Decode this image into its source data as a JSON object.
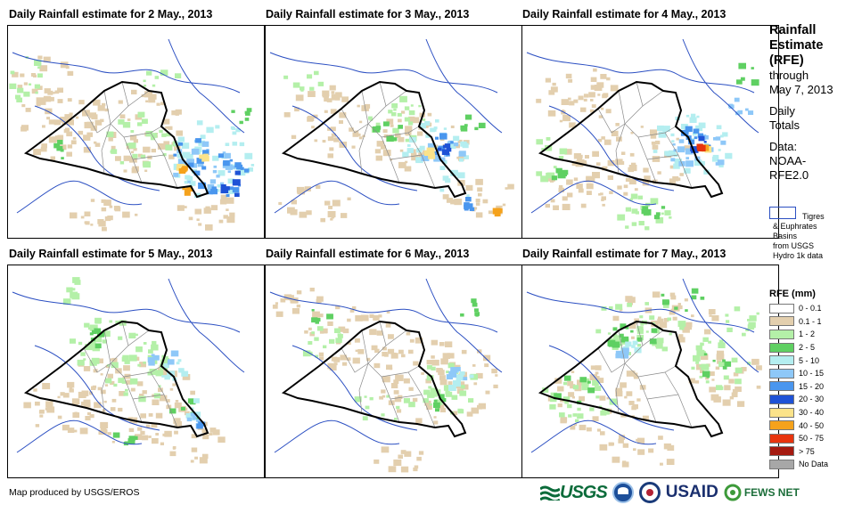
{
  "panels": [
    {
      "title": "Daily Rainfall estimate for 2 May., 2013"
    },
    {
      "title": "Daily Rainfall estimate for 3 May., 2013"
    },
    {
      "title": "Daily Rainfall estimate for 4 May., 2013"
    },
    {
      "title": "Daily Rainfall estimate for 5 May., 2013"
    },
    {
      "title": "Daily Rainfall estimate for 6 May., 2013"
    },
    {
      "title": "Daily Rainfall estimate for 7 May., 2013"
    }
  ],
  "side": {
    "line1": "Rainfall",
    "line2": "Estimate",
    "line3": "(RFE)",
    "line4": "through",
    "line5": "May 7, 2013",
    "line6": "Daily",
    "line7": "Totals",
    "line8": "Data:",
    "line9": "NOAA-",
    "line10": "RFE2.0"
  },
  "basin_key": {
    "line1": "Tigres",
    "line2": "& Euphrates",
    "line3": "Basins",
    "line4": "from USGS",
    "line5": "Hydro 1k data"
  },
  "legend": {
    "title": "RFE (mm)",
    "items": [
      {
        "label": "0 - 0.1",
        "color": "#ffffff"
      },
      {
        "label": "0.1 - 1",
        "color": "#e3cfae"
      },
      {
        "label": "1 - 2",
        "color": "#b4f0a8"
      },
      {
        "label": "2 - 5",
        "color": "#5fd062"
      },
      {
        "label": "5 - 10",
        "color": "#b4eef0"
      },
      {
        "label": "10 - 15",
        "color": "#8ec8f8"
      },
      {
        "label": "15 - 20",
        "color": "#4a96ee"
      },
      {
        "label": "20 - 30",
        "color": "#1f52d6"
      },
      {
        "label": "30 - 40",
        "color": "#fbe38a"
      },
      {
        "label": "40 - 50",
        "color": "#f5a21c"
      },
      {
        "label": "50 - 75",
        "color": "#e8340e"
      },
      {
        "label": "> 75",
        "color": "#a51a10"
      },
      {
        "label": "No Data",
        "color": "#a7a7a7"
      }
    ]
  },
  "credit": "Map produced by USGS/EROS",
  "logos": {
    "usgs": "USGS",
    "usaid": "USAID",
    "fews": "FEWS NET"
  },
  "colors": {
    "basin_outline": "#2b4fc2",
    "country_border": "#000000",
    "province_border": "#8a8a8a"
  }
}
